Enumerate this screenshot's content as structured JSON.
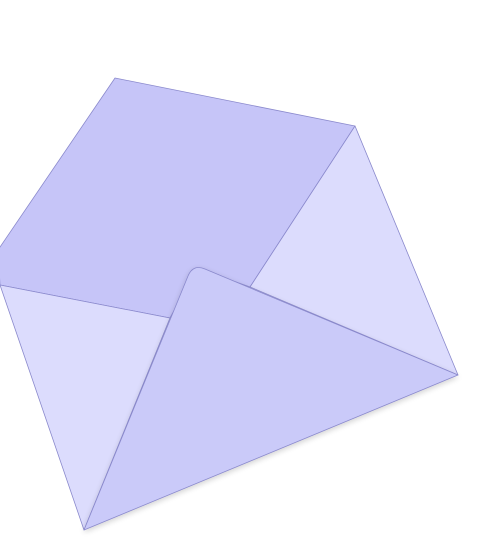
{
  "illustration": {
    "subject": "open-envelope-icon",
    "colors": {
      "flap": "#c6c5f8",
      "side_panel": "#dcdcfd",
      "back_panel": "#dcdcfd",
      "front_flap": "#cacaf9",
      "outline": "#8a89cc",
      "background": "#ffffff"
    }
  }
}
